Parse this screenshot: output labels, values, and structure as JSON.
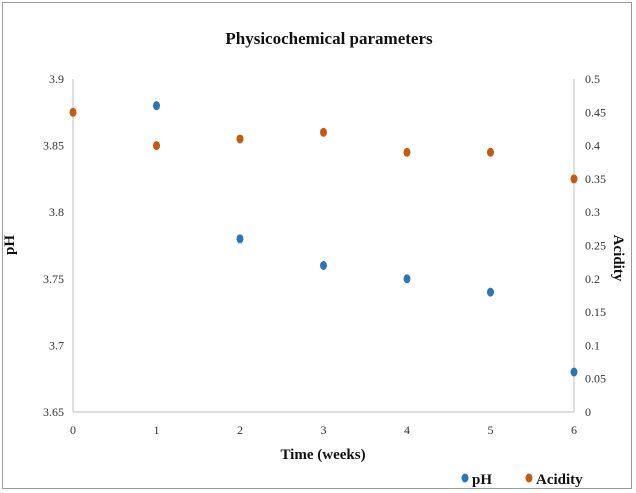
{
  "chart_data": {
    "type": "scatter",
    "title": "Physicochemical parameters",
    "xlabel": "Time (weeks)",
    "ylabel": "pH",
    "y2label": "Acidity",
    "xlim": [
      0,
      6
    ],
    "ylim": [
      3.65,
      3.9
    ],
    "y2lim": [
      0,
      0.5
    ],
    "x_ticks": [
      "0",
      "1",
      "2",
      "3",
      "4",
      "5",
      "6"
    ],
    "y_ticks": [
      "3.65",
      "3.7",
      "3.75",
      "3.8",
      "3.85",
      "3.9"
    ],
    "y2_ticks": [
      "0",
      "0.05",
      "0.1",
      "0.15",
      "0.2",
      "0.25",
      "0.3",
      "0.35",
      "0.4",
      "0.45",
      "0.5"
    ],
    "grid": false,
    "legend_position": "bottom-right",
    "series": [
      {
        "name": "pH",
        "axis": "left",
        "color": "#2E75B6",
        "points": [
          {
            "x": 1,
            "y": 3.88
          },
          {
            "x": 2,
            "y": 3.78
          },
          {
            "x": 3,
            "y": 3.76
          },
          {
            "x": 4,
            "y": 3.75
          },
          {
            "x": 5,
            "y": 3.74
          },
          {
            "x": 6,
            "y": 3.68
          }
        ]
      },
      {
        "name": "Acidity",
        "axis": "right",
        "color": "#C55A11",
        "points": [
          {
            "x": 0,
            "y": 0.45
          },
          {
            "x": 1,
            "y": 0.4
          },
          {
            "x": 2,
            "y": 0.41
          },
          {
            "x": 3,
            "y": 0.42
          },
          {
            "x": 4,
            "y": 0.39
          },
          {
            "x": 5,
            "y": 0.39
          },
          {
            "x": 6,
            "y": 0.35
          }
        ]
      }
    ]
  }
}
